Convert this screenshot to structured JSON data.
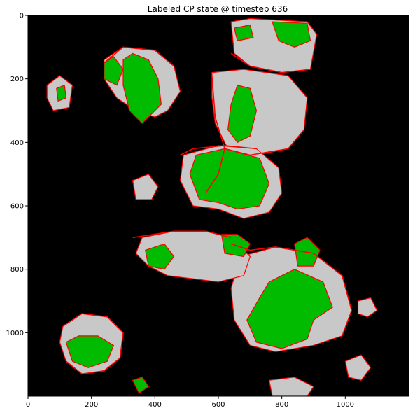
{
  "chart_data": {
    "type": "heatmap",
    "title": "Labeled CP state @ timestep 636",
    "xlabel": "",
    "ylabel": "",
    "xlim": [
      0,
      1200
    ],
    "ylim": [
      1200,
      0
    ],
    "x_ticks": [
      "0",
      "200",
      "400",
      "600",
      "800",
      "1000"
    ],
    "y_ticks": [
      "0",
      "200",
      "400",
      "600",
      "800",
      "1000"
    ],
    "x_tick_values": [
      0,
      200,
      400,
      600,
      800,
      1000
    ],
    "y_tick_values": [
      0,
      200,
      400,
      600,
      800,
      1000
    ],
    "grid": false,
    "colors": {
      "background": "#000000",
      "inactive": "#c8c8c8",
      "active": "#00bb00",
      "boundary": "#ff0000"
    },
    "regions": [
      {
        "state": "inactive",
        "polygon": [
          [
            240,
            140
          ],
          [
            300,
            100
          ],
          [
            400,
            110
          ],
          [
            460,
            160
          ],
          [
            480,
            240
          ],
          [
            440,
            300
          ],
          [
            400,
            320
          ],
          [
            340,
            300
          ],
          [
            280,
            260
          ],
          [
            240,
            200
          ]
        ]
      },
      {
        "state": "active",
        "polygon": [
          [
            300,
            140
          ],
          [
            330,
            120
          ],
          [
            380,
            140
          ],
          [
            410,
            200
          ],
          [
            420,
            280
          ],
          [
            360,
            340
          ],
          [
            320,
            300
          ],
          [
            300,
            220
          ]
        ]
      },
      {
        "state": "active",
        "polygon": [
          [
            240,
            150
          ],
          [
            270,
            130
          ],
          [
            300,
            170
          ],
          [
            280,
            220
          ],
          [
            240,
            200
          ]
        ]
      },
      {
        "state": "inactive",
        "polygon": [
          [
            580,
            180
          ],
          [
            680,
            170
          ],
          [
            820,
            190
          ],
          [
            880,
            260
          ],
          [
            870,
            360
          ],
          [
            820,
            420
          ],
          [
            720,
            440
          ],
          [
            630,
            420
          ],
          [
            590,
            340
          ],
          [
            580,
            260
          ]
        ]
      },
      {
        "state": "active",
        "polygon": [
          [
            660,
            220
          ],
          [
            700,
            230
          ],
          [
            720,
            300
          ],
          [
            700,
            380
          ],
          [
            660,
            400
          ],
          [
            630,
            360
          ],
          [
            640,
            280
          ]
        ]
      },
      {
        "state": "inactive",
        "polygon": [
          [
            640,
            20
          ],
          [
            700,
            10
          ],
          [
            880,
            20
          ],
          [
            910,
            60
          ],
          [
            890,
            170
          ],
          [
            800,
            180
          ],
          [
            700,
            160
          ],
          [
            650,
            120
          ]
        ]
      },
      {
        "state": "active",
        "polygon": [
          [
            770,
            20
          ],
          [
            880,
            25
          ],
          [
            890,
            80
          ],
          [
            840,
            100
          ],
          [
            790,
            80
          ]
        ]
      },
      {
        "state": "active",
        "polygon": [
          [
            650,
            40
          ],
          [
            700,
            30
          ],
          [
            710,
            70
          ],
          [
            660,
            80
          ]
        ]
      },
      {
        "state": "inactive",
        "polygon": [
          [
            490,
            440
          ],
          [
            600,
            410
          ],
          [
            720,
            420
          ],
          [
            790,
            480
          ],
          [
            800,
            560
          ],
          [
            760,
            620
          ],
          [
            680,
            640
          ],
          [
            600,
            610
          ],
          [
            520,
            600
          ],
          [
            480,
            520
          ]
        ]
      },
      {
        "state": "active",
        "polygon": [
          [
            530,
            440
          ],
          [
            620,
            420
          ],
          [
            730,
            450
          ],
          [
            760,
            530
          ],
          [
            730,
            600
          ],
          [
            660,
            610
          ],
          [
            600,
            590
          ],
          [
            540,
            580
          ],
          [
            510,
            500
          ]
        ]
      },
      {
        "state": "inactive",
        "polygon": [
          [
            670,
            760
          ],
          [
            780,
            730
          ],
          [
            900,
            750
          ],
          [
            990,
            820
          ],
          [
            1020,
            930
          ],
          [
            990,
            1010
          ],
          [
            900,
            1040
          ],
          [
            780,
            1060
          ],
          [
            700,
            1040
          ],
          [
            650,
            960
          ],
          [
            640,
            860
          ]
        ]
      },
      {
        "state": "active",
        "polygon": [
          [
            760,
            840
          ],
          [
            840,
            800
          ],
          [
            930,
            840
          ],
          [
            960,
            920
          ],
          [
            900,
            960
          ],
          [
            880,
            1020
          ],
          [
            800,
            1050
          ],
          [
            720,
            1030
          ],
          [
            690,
            960
          ],
          [
            730,
            890
          ]
        ]
      },
      {
        "state": "active",
        "polygon": [
          [
            840,
            720
          ],
          [
            880,
            700
          ],
          [
            920,
            740
          ],
          [
            900,
            790
          ],
          [
            850,
            790
          ]
        ]
      },
      {
        "state": "inactive",
        "polygon": [
          [
            360,
            700
          ],
          [
            460,
            680
          ],
          [
            560,
            680
          ],
          [
            640,
            700
          ],
          [
            700,
            760
          ],
          [
            680,
            820
          ],
          [
            600,
            840
          ],
          [
            520,
            830
          ],
          [
            440,
            820
          ],
          [
            380,
            790
          ],
          [
            340,
            750
          ]
        ]
      },
      {
        "state": "active",
        "polygon": [
          [
            370,
            740
          ],
          [
            430,
            720
          ],
          [
            460,
            760
          ],
          [
            430,
            800
          ],
          [
            380,
            790
          ]
        ]
      },
      {
        "state": "active",
        "polygon": [
          [
            610,
            690
          ],
          [
            660,
            690
          ],
          [
            700,
            720
          ],
          [
            680,
            760
          ],
          [
            620,
            750
          ]
        ]
      },
      {
        "state": "inactive",
        "polygon": [
          [
            110,
            980
          ],
          [
            170,
            940
          ],
          [
            250,
            950
          ],
          [
            300,
            1000
          ],
          [
            290,
            1080
          ],
          [
            240,
            1120
          ],
          [
            170,
            1130
          ],
          [
            120,
            1090
          ],
          [
            100,
            1030
          ]
        ]
      },
      {
        "state": "active",
        "polygon": [
          [
            120,
            1030
          ],
          [
            160,
            1010
          ],
          [
            220,
            1010
          ],
          [
            270,
            1040
          ],
          [
            250,
            1090
          ],
          [
            190,
            1110
          ],
          [
            140,
            1090
          ]
        ]
      },
      {
        "state": "inactive",
        "polygon": [
          [
            60,
            220
          ],
          [
            100,
            190
          ],
          [
            140,
            220
          ],
          [
            130,
            290
          ],
          [
            80,
            300
          ],
          [
            60,
            260
          ]
        ]
      },
      {
        "state": "active",
        "polygon": [
          [
            90,
            230
          ],
          [
            115,
            220
          ],
          [
            120,
            260
          ],
          [
            95,
            270
          ]
        ]
      },
      {
        "state": "inactive",
        "polygon": [
          [
            330,
            520
          ],
          [
            380,
            500
          ],
          [
            410,
            540
          ],
          [
            390,
            580
          ],
          [
            340,
            580
          ]
        ]
      },
      {
        "state": "inactive",
        "polygon": [
          [
            1000,
            1090
          ],
          [
            1050,
            1070
          ],
          [
            1080,
            1110
          ],
          [
            1050,
            1150
          ],
          [
            1010,
            1140
          ]
        ]
      },
      {
        "state": "inactive",
        "polygon": [
          [
            760,
            1150
          ],
          [
            840,
            1140
          ],
          [
            900,
            1170
          ],
          [
            880,
            1200
          ],
          [
            770,
            1200
          ]
        ]
      },
      {
        "state": "active",
        "polygon": [
          [
            330,
            1150
          ],
          [
            360,
            1140
          ],
          [
            380,
            1170
          ],
          [
            350,
            1190
          ]
        ]
      },
      {
        "state": "inactive",
        "polygon": [
          [
            1040,
            900
          ],
          [
            1080,
            890
          ],
          [
            1100,
            930
          ],
          [
            1070,
            950
          ],
          [
            1040,
            940
          ]
        ]
      }
    ],
    "boundaries": [
      [
        [
          580,
          190
        ],
        [
          590,
          320
        ],
        [
          620,
          420
        ],
        [
          700,
          440
        ],
        [
          820,
          420
        ],
        [
          870,
          360
        ]
      ],
      [
        [
          480,
          440
        ],
        [
          520,
          420
        ],
        [
          620,
          410
        ],
        [
          720,
          420
        ]
      ],
      [
        [
          640,
          720
        ],
        [
          700,
          740
        ],
        [
          780,
          730
        ],
        [
          900,
          750
        ],
        [
          990,
          820
        ],
        [
          1020,
          930
        ],
        [
          990,
          1010
        ]
      ],
      [
        [
          640,
          120
        ],
        [
          700,
          160
        ],
        [
          800,
          180
        ],
        [
          890,
          170
        ]
      ],
      [
        [
          240,
          150
        ],
        [
          300,
          100
        ],
        [
          400,
          110
        ],
        [
          460,
          160
        ]
      ],
      [
        [
          330,
          700
        ],
        [
          460,
          680
        ],
        [
          560,
          680
        ],
        [
          640,
          700
        ]
      ],
      [
        [
          110,
          980
        ],
        [
          170,
          940
        ],
        [
          250,
          950
        ],
        [
          300,
          1000
        ],
        [
          290,
          1080
        ],
        [
          240,
          1120
        ],
        [
          170,
          1130
        ],
        [
          120,
          1090
        ]
      ],
      [
        [
          620,
          420
        ],
        [
          600,
          500
        ],
        [
          560,
          560
        ]
      ]
    ]
  }
}
